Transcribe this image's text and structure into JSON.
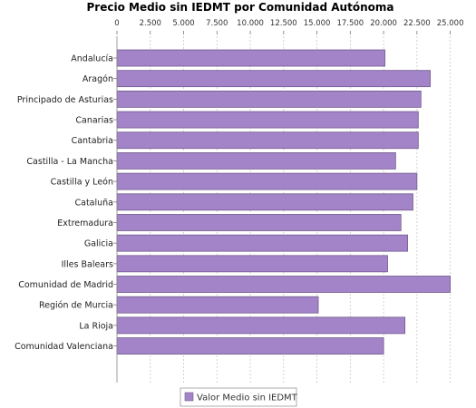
{
  "chart_data": {
    "type": "bar",
    "orientation": "horizontal",
    "title": "Precio Medio sin IEDMT por Comunidad Autónoma",
    "xlabel": "",
    "ylabel": "",
    "xlim": [
      0,
      26250
    ],
    "ticks": [
      {
        "value": 0,
        "label": "0"
      },
      {
        "value": 2500,
        "label": "2.500"
      },
      {
        "value": 5000,
        "label": "5.000"
      },
      {
        "value": 7500,
        "label": "7.500"
      },
      {
        "value": 10000,
        "label": "10.000"
      },
      {
        "value": 12500,
        "label": "12.500"
      },
      {
        "value": 15000,
        "label": "15.000"
      },
      {
        "value": 17500,
        "label": "17.500"
      },
      {
        "value": 20000,
        "label": "20.000"
      },
      {
        "value": 22500,
        "label": "22.500"
      },
      {
        "value": 25000,
        "label": "25.000"
      }
    ],
    "categories": [
      "Andalucía",
      "Aragón",
      "Principado de Asturias",
      "Canarias",
      "Cantabria",
      "Castilla - La Mancha",
      "Castilla y León",
      "Cataluña",
      "Extremadura",
      "Galicia",
      "Illes Balears",
      "Comunidad de Madrid",
      "Región de Murcia",
      "La Rioja",
      "Comunidad Valenciana"
    ],
    "series": [
      {
        "name": "Valor Medio sin IEDMT",
        "color": "#a484c8",
        "values": [
          20100,
          23500,
          22800,
          22600,
          22600,
          20900,
          22500,
          22200,
          21300,
          21800,
          20300,
          25000,
          15100,
          21600,
          20000
        ]
      }
    ],
    "grid": true,
    "legend_position": "bottom"
  }
}
